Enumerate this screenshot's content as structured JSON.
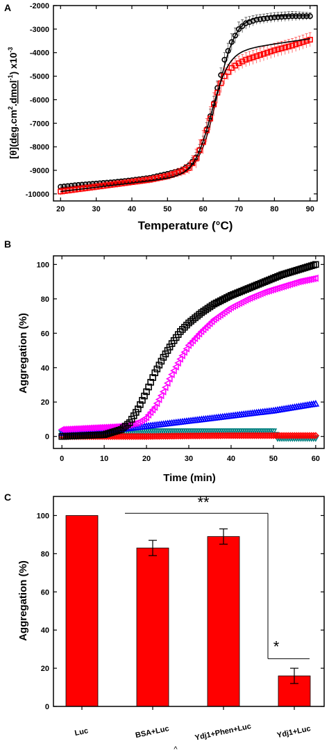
{
  "chart_data": [
    {
      "panel": "A",
      "type": "scatter",
      "xlabel": "Temperature (°C)",
      "ylabel_parts": [
        "[θ](",
        "deg",
        ".cm",
        "2",
        ".",
        "dmol",
        "-1",
        ") x10",
        "-3"
      ],
      "xlim": [
        18,
        92
      ],
      "ylim": [
        -10300,
        -2000
      ],
      "xticks": [
        20,
        30,
        40,
        50,
        60,
        70,
        80,
        90
      ],
      "yticks": [
        -10000,
        -9000,
        -8000,
        -7000,
        -6000,
        -5000,
        -4000,
        -3000,
        -2000
      ],
      "series": [
        {
          "color": "#000000",
          "marker": "circle",
          "fit": "sigmoid",
          "fit_params": {
            "bottom": -9750,
            "top": -2430,
            "midpoint": 64.0,
            "width": 2.6,
            "slope_low": 14
          },
          "x": [
            20,
            25,
            30,
            35,
            40,
            45,
            50,
            54,
            56,
            58,
            60,
            62,
            63,
            64,
            65,
            66,
            68,
            70,
            72,
            75,
            80,
            85,
            90
          ],
          "y": [
            -9700,
            -9620,
            -9560,
            -9500,
            -9420,
            -9320,
            -9150,
            -9000,
            -8800,
            -8450,
            -7800,
            -6700,
            -6150,
            -5500,
            -4950,
            -4300,
            -3550,
            -3000,
            -2750,
            -2600,
            -2500,
            -2450,
            -2450
          ],
          "yerr": [
            100,
            100,
            100,
            100,
            100,
            100,
            100,
            120,
            150,
            200,
            250,
            300,
            300,
            300,
            300,
            300,
            350,
            300,
            250,
            200,
            200,
            200,
            150
          ]
        },
        {
          "color": "#ff0000",
          "marker": "square",
          "fit": "sigmoid",
          "fit_params": {
            "bottom": -9900,
            "top": -3850,
            "midpoint": 62.3,
            "width": 2.4,
            "slope_low": 18,
            "slope_high": 22
          },
          "x": [
            20,
            25,
            30,
            35,
            40,
            45,
            50,
            54,
            56,
            58,
            60,
            61,
            62,
            63,
            64,
            65,
            66,
            68,
            70,
            72,
            75,
            80,
            85,
            90
          ],
          "y": [
            -9900,
            -9800,
            -9700,
            -9600,
            -9500,
            -9400,
            -9250,
            -9050,
            -8900,
            -8500,
            -7800,
            -7300,
            -6800,
            -6200,
            -5700,
            -5300,
            -5000,
            -4650,
            -4450,
            -4300,
            -4150,
            -3900,
            -3700,
            -3450
          ],
          "yerr": [
            150,
            150,
            150,
            150,
            150,
            150,
            150,
            200,
            250,
            400,
            500,
            500,
            500,
            500,
            450,
            400,
            350,
            300,
            300,
            300,
            300,
            300,
            300,
            300
          ]
        }
      ]
    },
    {
      "panel": "B",
      "type": "scatter",
      "xlabel": "Time (min)",
      "ylabel": "Aggregation (%)",
      "xlim": [
        -2,
        62
      ],
      "ylim": [
        -7,
        105
      ],
      "xticks": [
        0,
        10,
        20,
        30,
        40,
        50,
        60
      ],
      "yticks": [
        0,
        20,
        40,
        60,
        80,
        100
      ],
      "series": [
        {
          "color": "#000000",
          "marker": "square",
          "x": [
            0,
            10,
            14,
            16,
            18,
            20,
            22,
            24,
            26,
            28,
            30,
            33,
            36,
            40,
            44,
            48,
            52,
            56,
            60
          ],
          "y": [
            0,
            1,
            4,
            8,
            16,
            26,
            37,
            46,
            54,
            61,
            66,
            72,
            77,
            82,
            86,
            90,
            94,
            97,
            100
          ]
        },
        {
          "color": "#ff00ff",
          "marker": "triangle-left",
          "x": [
            0,
            4,
            8,
            12,
            15,
            18,
            20,
            22,
            24,
            26,
            28,
            30,
            33,
            36,
            40,
            44,
            48,
            52,
            56,
            60
          ],
          "y": [
            4,
            4.5,
            5,
            5.5,
            6,
            8,
            11,
            17,
            26,
            36,
            45,
            53,
            61,
            68,
            75,
            80,
            84,
            87,
            90,
            92
          ]
        },
        {
          "color": "#0000ff",
          "marker": "triangle-up",
          "x": [
            0,
            10,
            20,
            30,
            40,
            50,
            60
          ],
          "y": [
            2,
            3,
            6,
            9,
            12,
            15,
            19
          ]
        },
        {
          "color": "#008080",
          "marker": "triangle-down",
          "x": [
            0,
            10,
            20,
            30,
            40,
            50,
            51,
            60
          ],
          "y": [
            2,
            2.5,
            3,
            3,
            3,
            3,
            -1,
            -1
          ]
        },
        {
          "color": "#ff0000",
          "marker": "diamond",
          "x": [
            0,
            10,
            20,
            30,
            40,
            50,
            60
          ],
          "y": [
            0,
            0,
            0,
            0.3,
            0.5,
            0.5,
            0.5
          ]
        }
      ]
    },
    {
      "panel": "C",
      "type": "bar",
      "ylabel": "Aggregation (%)",
      "ylim": [
        0,
        110
      ],
      "yticks": [
        0,
        20,
        40,
        60,
        80,
        100
      ],
      "categories": [
        "Luc",
        "BSA+Luc",
        "Ydj1+Phen+Luc",
        "Ydj1+Luc"
      ],
      "values": [
        100,
        83,
        89,
        16
      ],
      "errors": [
        0,
        4,
        4,
        4
      ],
      "bar_color": "#ff0000",
      "significance": [
        {
          "label": "**",
          "from": 1,
          "to": 3,
          "level": 107
        },
        {
          "label": "*",
          "over": 3,
          "level": 25
        }
      ]
    }
  ],
  "footer_mark": "^"
}
